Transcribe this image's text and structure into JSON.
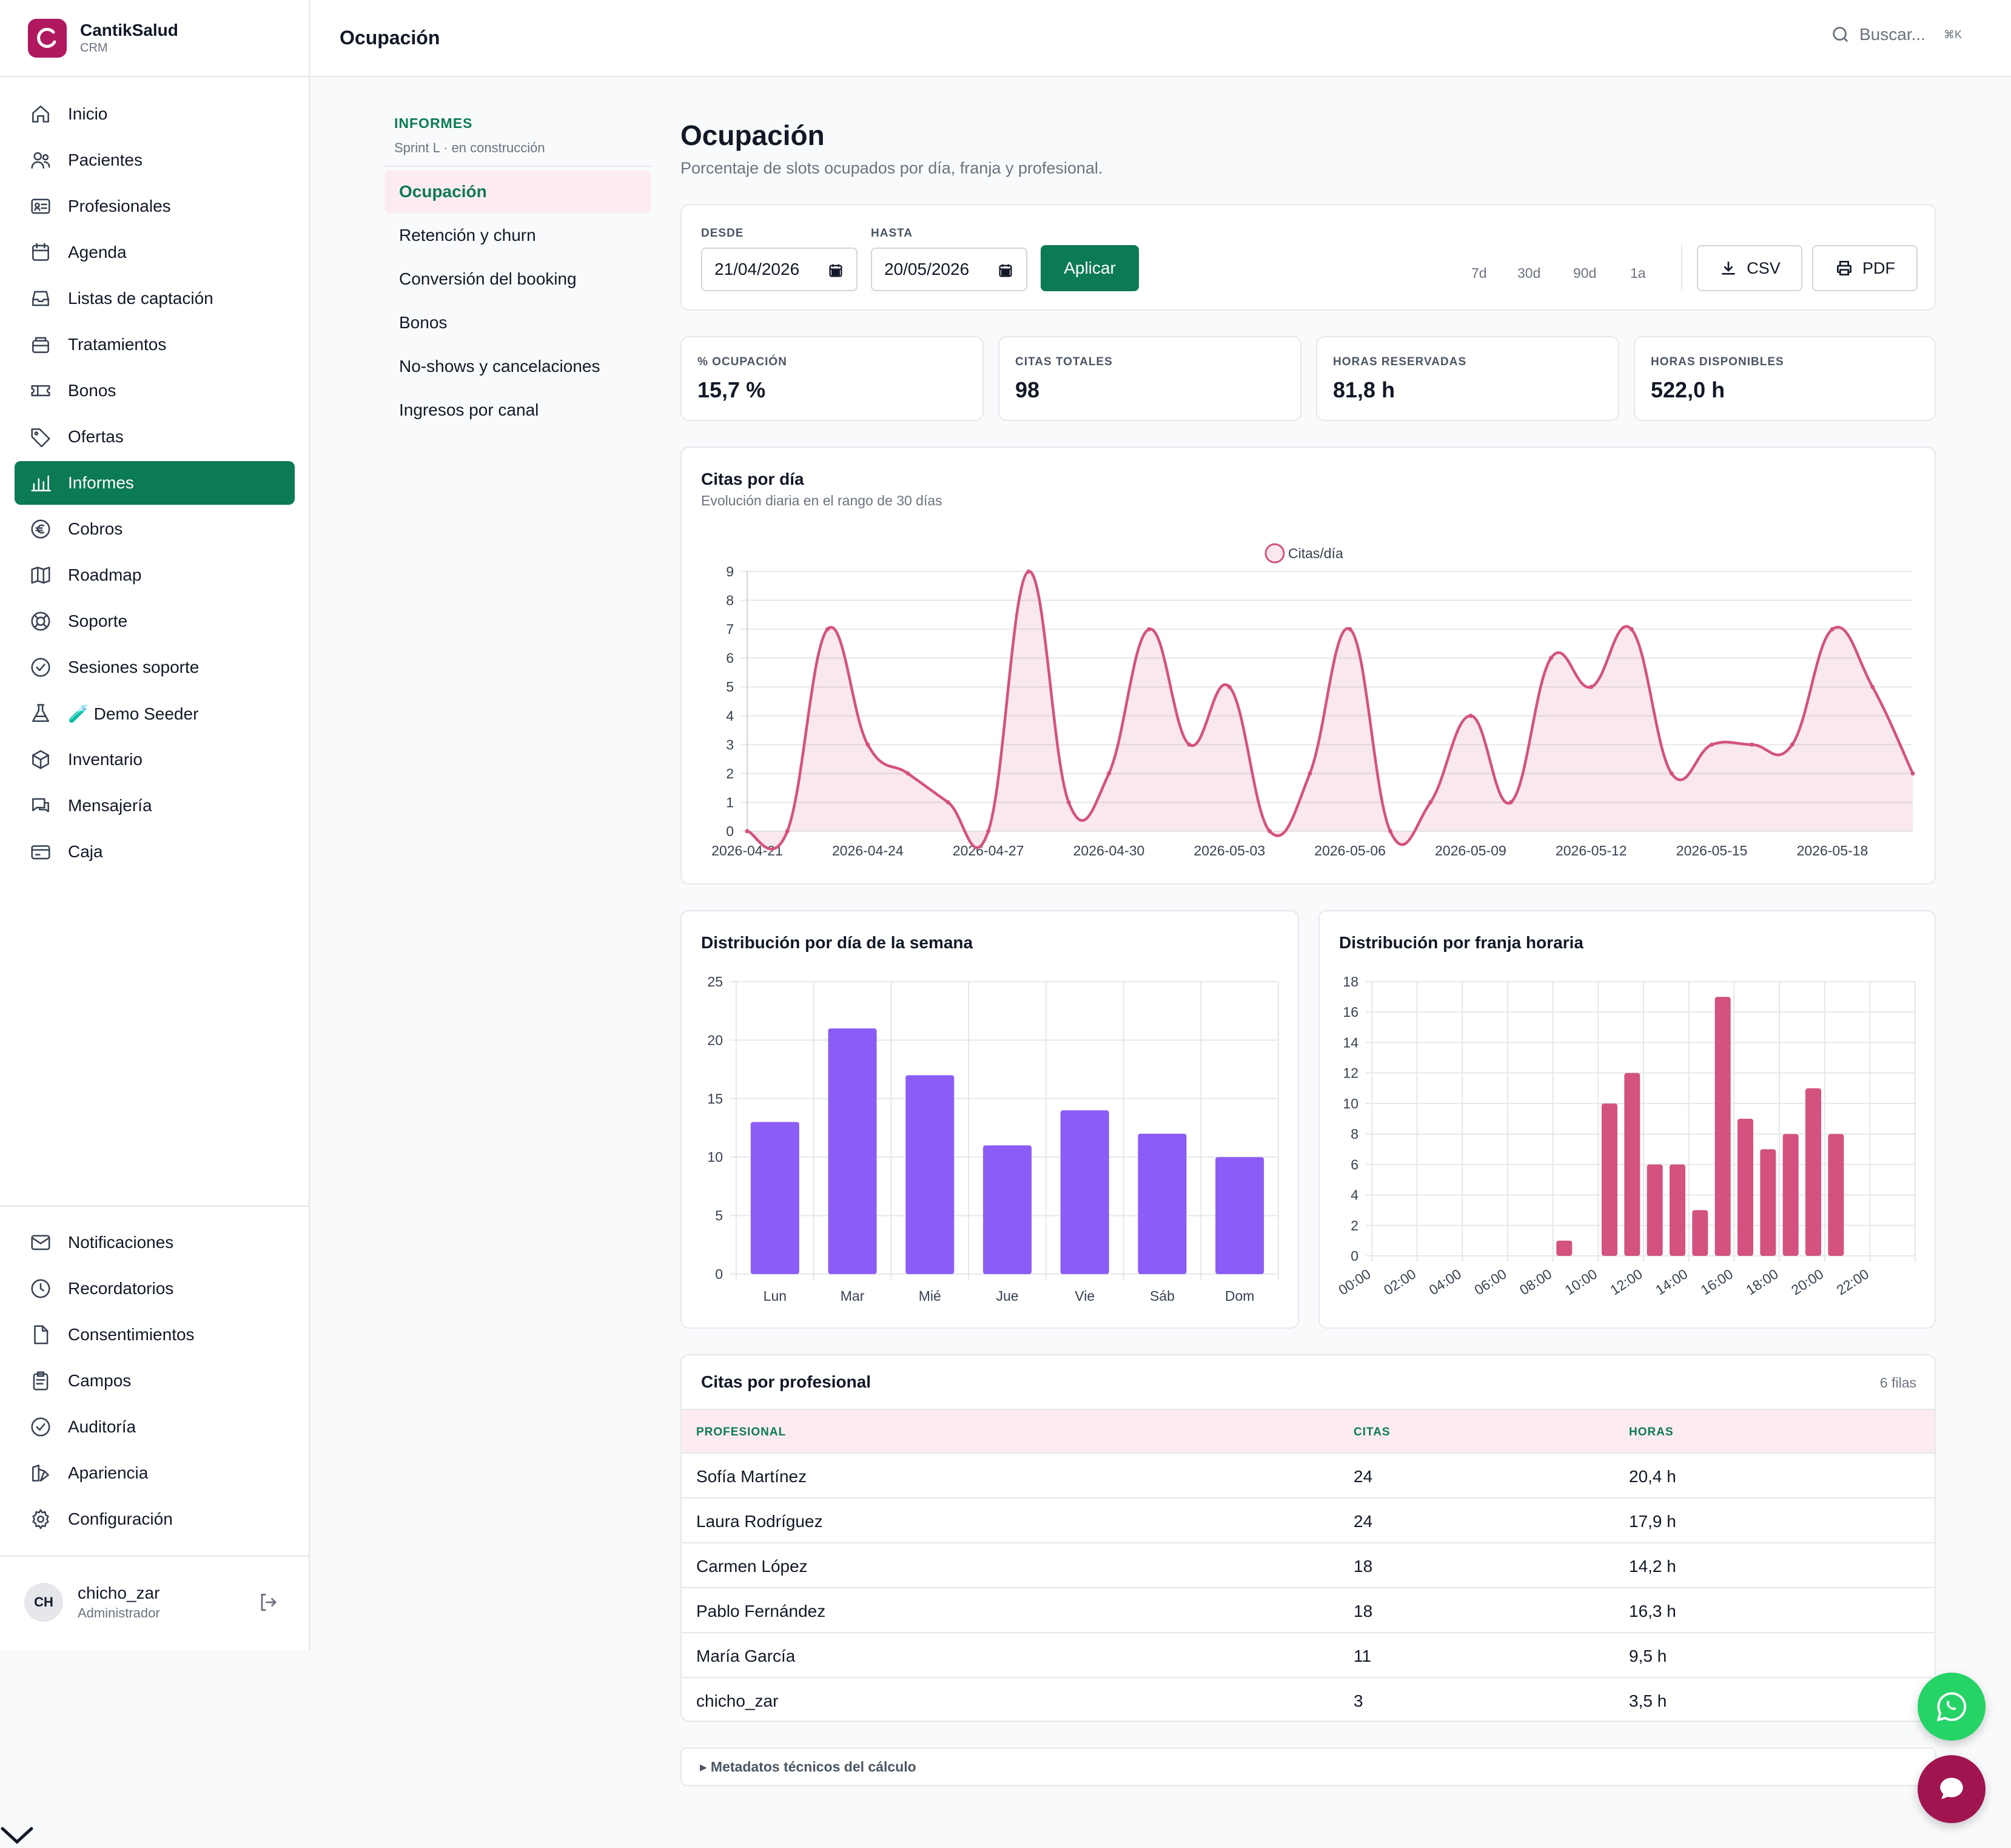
{
  "brand": {
    "name": "CantikSalud",
    "sub": "CRM"
  },
  "nav": [
    {
      "label": "Inicio",
      "icon": "home-icon"
    },
    {
      "label": "Pacientes",
      "icon": "users-icon"
    },
    {
      "label": "Profesionales",
      "icon": "id-card-icon"
    },
    {
      "label": "Agenda",
      "icon": "calendar-icon"
    },
    {
      "label": "Listas de captación",
      "icon": "inbox-icon"
    },
    {
      "label": "Tratamientos",
      "icon": "box-icon"
    },
    {
      "label": "Bonos",
      "icon": "ticket-icon"
    },
    {
      "label": "Ofertas",
      "icon": "tag-icon"
    },
    {
      "label": "Informes",
      "icon": "bar-chart-icon",
      "active": true
    },
    {
      "label": "Cobros",
      "icon": "euro-icon"
    },
    {
      "label": "Roadmap",
      "icon": "map-icon"
    },
    {
      "label": "Soporte",
      "icon": "lifebuoy-icon"
    },
    {
      "label": "Sesiones soporte",
      "icon": "check-badge-icon"
    },
    {
      "label": "🧪 Demo Seeder",
      "icon": "flask-icon"
    },
    {
      "label": "Inventario",
      "icon": "package-icon"
    },
    {
      "label": "Mensajería",
      "icon": "chat-icon"
    },
    {
      "label": "Caja",
      "icon": "card-icon"
    }
  ],
  "nav_bottom": [
    {
      "label": "Notificaciones",
      "icon": "mail-icon"
    },
    {
      "label": "Recordatorios",
      "icon": "clock-icon"
    },
    {
      "label": "Consentimientos",
      "icon": "file-icon"
    },
    {
      "label": "Campos",
      "icon": "clipboard-icon"
    },
    {
      "label": "Auditoría",
      "icon": "shield-check-icon"
    },
    {
      "label": "Apariencia",
      "icon": "palette-icon"
    },
    {
      "label": "Configuración",
      "icon": "gear-icon"
    }
  ],
  "user": {
    "initials": "CH",
    "name": "chicho_zar",
    "role": "Administrador"
  },
  "topbar": {
    "title": "Ocupación",
    "search_placeholder": "Buscar...",
    "shortcut": "⌘K"
  },
  "subnav": {
    "heading": "INFORMES",
    "subheading": "Sprint L · en construcción",
    "items": [
      "Ocupación",
      "Retención y churn",
      "Conversión del booking",
      "Bonos",
      "No-shows y cancelaciones",
      "Ingresos por canal"
    ],
    "active": 0
  },
  "page": {
    "title": "Ocupación",
    "subtitle": "Porcentaje de slots ocupados por día, franja y profesional."
  },
  "filters": {
    "from_label": "DESDE",
    "from_value": "21/04/2026",
    "to_label": "HASTA",
    "to_value": "20/05/2026",
    "apply": "Aplicar",
    "ranges": [
      "7d",
      "30d",
      "90d",
      "1a"
    ],
    "csv": "CSV",
    "pdf": "PDF"
  },
  "kpis": [
    {
      "label": "% OCUPACIÓN",
      "value": "15,7 %"
    },
    {
      "label": "CITAS TOTALES",
      "value": "98"
    },
    {
      "label": "HORAS RESERVADAS",
      "value": "81,8 h"
    },
    {
      "label": "HORAS DISPONIBLES",
      "value": "522,0 h"
    }
  ],
  "chart_data": [
    {
      "type": "line",
      "title": "Citas por día",
      "subtitle": "Evolución diaria en el rango de 30 días",
      "legend": "Citas/día",
      "color": "#d4527f",
      "x": [
        "2026-04-21",
        "2026-04-22",
        "2026-04-23",
        "2026-04-24",
        "2026-04-25",
        "2026-04-26",
        "2026-04-27",
        "2026-04-28",
        "2026-04-29",
        "2026-04-30",
        "2026-05-01",
        "2026-05-02",
        "2026-05-03",
        "2026-05-04",
        "2026-05-05",
        "2026-05-06",
        "2026-05-07",
        "2026-05-08",
        "2026-05-09",
        "2026-05-10",
        "2026-05-11",
        "2026-05-12",
        "2026-05-13",
        "2026-05-14",
        "2026-05-15",
        "2026-05-16",
        "2026-05-17",
        "2026-05-18",
        "2026-05-19",
        "2026-05-20"
      ],
      "values": [
        0,
        0,
        7,
        3,
        2,
        1,
        0,
        9,
        1,
        2,
        7,
        3,
        5,
        0,
        2,
        7,
        0,
        1,
        4,
        1,
        6,
        5,
        7,
        2,
        3,
        3,
        3,
        7,
        5,
        2
      ],
      "xticks": [
        "2026-04-21",
        "2026-04-24",
        "2026-04-27",
        "2026-04-30",
        "2026-05-03",
        "2026-05-06",
        "2026-05-09",
        "2026-05-12",
        "2026-05-15",
        "2026-05-18"
      ],
      "yticks": [
        0,
        1,
        2,
        3,
        4,
        5,
        6,
        7,
        8,
        9
      ],
      "ylim": [
        0,
        9
      ]
    },
    {
      "type": "bar",
      "title": "Distribución por día de la semana",
      "color": "#8b5cf6",
      "categories": [
        "Lun",
        "Mar",
        "Mié",
        "Jue",
        "Vie",
        "Sáb",
        "Dom"
      ],
      "values": [
        13,
        21,
        17,
        11,
        14,
        12,
        10
      ],
      "yticks": [
        0,
        5,
        10,
        15,
        20,
        25
      ],
      "ylim": [
        0,
        25
      ]
    },
    {
      "type": "bar",
      "title": "Distribución por franja horaria",
      "color": "#d4527f",
      "categories": [
        "00:00",
        "01:00",
        "02:00",
        "03:00",
        "04:00",
        "05:00",
        "06:00",
        "07:00",
        "08:00",
        "09:00",
        "10:00",
        "11:00",
        "12:00",
        "13:00",
        "14:00",
        "15:00",
        "16:00",
        "17:00",
        "18:00",
        "19:00",
        "20:00",
        "21:00",
        "22:00",
        "23:00"
      ],
      "values": [
        0,
        0,
        0,
        0,
        0,
        0,
        0,
        0,
        1,
        0,
        10,
        12,
        6,
        6,
        3,
        17,
        9,
        7,
        8,
        11,
        8,
        0,
        0,
        0
      ],
      "xticks": [
        "00:00",
        "02:00",
        "04:00",
        "06:00",
        "08:00",
        "10:00",
        "12:00",
        "14:00",
        "16:00",
        "18:00",
        "20:00",
        "22:00"
      ],
      "yticks": [
        0,
        2,
        4,
        6,
        8,
        10,
        12,
        14,
        16,
        18
      ],
      "ylim": [
        0,
        18
      ]
    }
  ],
  "table": {
    "title": "Citas por profesional",
    "count": "6 filas",
    "headers": [
      "PROFESIONAL",
      "CITAS",
      "HORAS"
    ],
    "rows": [
      [
        "Sofía Martínez",
        "24",
        "20,4 h"
      ],
      [
        "Laura Rodríguez",
        "24",
        "17,9 h"
      ],
      [
        "Carmen López",
        "18",
        "14,2 h"
      ],
      [
        "Pablo Fernández",
        "18",
        "16,3 h"
      ],
      [
        "María García",
        "11",
        "9,5 h"
      ],
      [
        "chicho_zar",
        "3",
        "3,5 h"
      ]
    ]
  },
  "meta": "▸ Metadatos técnicos del cálculo",
  "colors": {
    "primary": "#0b7a55",
    "brand": "#b0185f",
    "pink": "#d4527f",
    "violet": "#8b5cf6",
    "whatsapp": "#25d366"
  }
}
